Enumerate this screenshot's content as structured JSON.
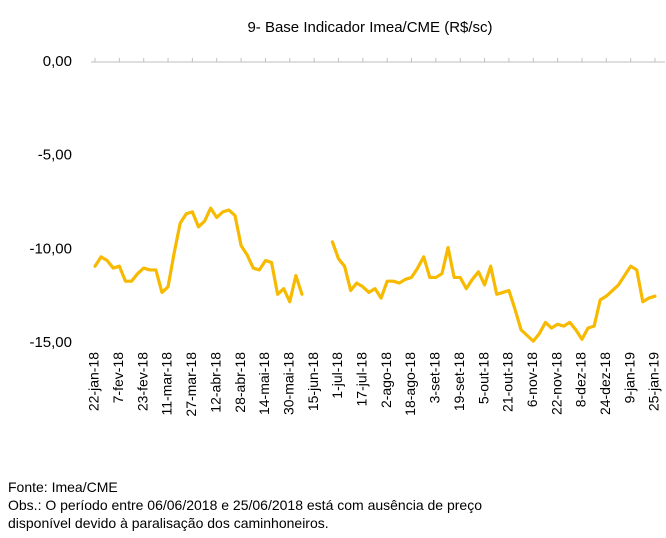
{
  "chart_data": {
    "type": "line",
    "title": "9- Base Indicador Imea/CME (R$/sc)",
    "categories": [
      "22-jan-18",
      null,
      null,
      null,
      "7-fev-18",
      null,
      null,
      null,
      "23-fev-18",
      null,
      null,
      null,
      "11-mar-18",
      null,
      null,
      null,
      "27-mar-18",
      null,
      null,
      null,
      "12-abr-18",
      null,
      null,
      null,
      "28-abr-18",
      null,
      null,
      null,
      "14-mai-18",
      null,
      null,
      null,
      "30-mai-18",
      null,
      null,
      null,
      "15-jun-18",
      null,
      null,
      null,
      "1-jul-18",
      null,
      null,
      null,
      "17-jul-18",
      null,
      null,
      null,
      "2-ago-18",
      null,
      null,
      null,
      "18-ago-18",
      null,
      null,
      null,
      "3-set-18",
      null,
      null,
      null,
      "19-set-18",
      null,
      null,
      null,
      "5-out-18",
      null,
      null,
      null,
      "21-out-18",
      null,
      null,
      null,
      "6-nov-18",
      null,
      null,
      null,
      "22-nov-18",
      null,
      null,
      null,
      "8-dez-18",
      null,
      null,
      null,
      "24-dez-18",
      null,
      null,
      null,
      "9-jan-19",
      null,
      null,
      null,
      "25-jan-19"
    ],
    "series": [
      {
        "name": "Base Indicador Imea/CME",
        "color": "#F7BA00",
        "values": [
          -10.9,
          -10.4,
          -10.6,
          -11.0,
          -10.9,
          -11.7,
          -11.7,
          -11.3,
          -11.0,
          -11.1,
          -11.1,
          -12.3,
          -12.0,
          -10.2,
          -8.6,
          -8.1,
          -8.0,
          -8.8,
          -8.5,
          -7.8,
          -8.3,
          -8.0,
          -7.9,
          -8.2,
          -9.8,
          -10.3,
          -11.0,
          -11.1,
          -10.6,
          -10.7,
          -12.4,
          -12.1,
          -12.8,
          -11.4,
          -12.4,
          null,
          null,
          null,
          null,
          -9.6,
          -10.5,
          -10.9,
          -12.2,
          -11.8,
          -12.0,
          -12.3,
          -12.1,
          -12.6,
          -11.7,
          -11.7,
          -11.8,
          -11.6,
          -11.5,
          -11.0,
          -10.4,
          -11.5,
          -11.5,
          -11.3,
          -9.9,
          -11.5,
          -11.5,
          -12.1,
          -11.6,
          -11.2,
          -11.9,
          -10.9,
          -12.4,
          -12.3,
          -12.2,
          -13.2,
          -14.3,
          -14.6,
          -14.9,
          -14.5,
          -13.9,
          -14.2,
          -14.0,
          -14.1,
          -13.9,
          -14.3,
          -14.8,
          -14.2,
          -14.1,
          -12.7,
          -12.5,
          -12.2,
          -11.9,
          -11.4,
          -10.9,
          -11.1,
          -12.8,
          -12.6,
          -12.5
        ]
      }
    ],
    "ylim": [
      -15,
      0
    ],
    "yticks": [
      {
        "value": 0,
        "label": "0,00"
      },
      {
        "value": -5,
        "label": "-5,00"
      },
      {
        "value": -10,
        "label": "-10,00"
      },
      {
        "value": -15,
        "label": "-15,00"
      }
    ],
    "grid": false,
    "source": "Fonte: Imea/CME",
    "note": [
      "Obs.: O período entre 06/06/2018 e 25/06/2018 está com ausência de preço",
      "disponível devido à paralisação dos caminhoneiros."
    ]
  }
}
